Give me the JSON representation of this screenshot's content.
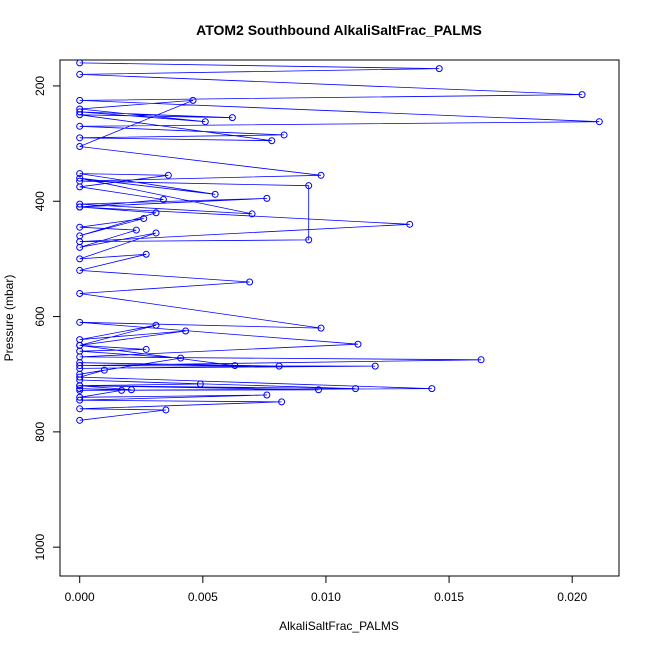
{
  "chart_data": {
    "type": "line",
    "title": "ATOM2 Southbound AlkaliSaltFrac_PALMS",
    "xlabel": "AlkaliSaltFrac_PALMS",
    "ylabel": "Pressure (mbar)",
    "xlim": [
      -0.0008,
      0.0219
    ],
    "ylim": [
      1050,
      155
    ],
    "y_reversed": true,
    "grid": false,
    "series_color": "#0000ff",
    "x_ticks": [
      0.0,
      0.005,
      0.01,
      0.015,
      0.02
    ],
    "x_tick_labels": [
      "0.000",
      "0.005",
      "0.010",
      "0.015",
      "0.020"
    ],
    "y_ticks": [
      200,
      400,
      600,
      800,
      1000
    ],
    "y_tick_labels": [
      "200",
      "400",
      "600",
      "800",
      "1000"
    ],
    "series": [
      {
        "x": [
          0.0,
          0.0146,
          0.0,
          0.0204,
          0.0,
          0.0211,
          0.0,
          0.0083,
          0.0,
          0.0078,
          0.0,
          0.0062,
          0.0,
          0.0051,
          0.0,
          0.0046,
          0.0,
          0.0098,
          0.0,
          0.0093,
          0.0093,
          0.0,
          0.0134,
          0.0,
          0.0076,
          0.0,
          0.007,
          0.0,
          0.0055,
          0.0,
          0.0036,
          0.0,
          0.0034,
          0.0,
          0.0031,
          0.0,
          0.0026,
          0.0,
          0.0023,
          0.0,
          0.0031,
          0.0,
          0.0027,
          0.0,
          0.0069,
          0.0,
          0.0098,
          0.0,
          0.0113,
          0.0,
          0.0163,
          0.0,
          0.012,
          0.0,
          0.0081,
          0.0,
          0.0063,
          0.0,
          0.0043,
          0.0,
          0.0031,
          0.0,
          0.0027,
          0.0,
          0.0041,
          0.0,
          0.001,
          0.0,
          0.0143,
          0.0,
          0.0097,
          0.0,
          0.0112,
          0.0,
          0.0049,
          0.0,
          0.0021,
          0.0,
          0.0017,
          0.0,
          0.0076,
          0.0,
          0.0082,
          0.0,
          0.0035,
          0.0
        ],
        "y": [
          160,
          170,
          180,
          215,
          225,
          262,
          270,
          285,
          290,
          295,
          250,
          255,
          245,
          262,
          240,
          225,
          305,
          355,
          365,
          373,
          467,
          470,
          440,
          410,
          395,
          405,
          422,
          360,
          388,
          352,
          355,
          375,
          397,
          410,
          420,
          460,
          430,
          445,
          450,
          480,
          455,
          500,
          492,
          520,
          540,
          560,
          620,
          610,
          648,
          670,
          675,
          685,
          686,
          690,
          686,
          680,
          685,
          650,
          625,
          640,
          615,
          650,
          657,
          660,
          672,
          700,
          693,
          705,
          725,
          728,
          727,
          720,
          725,
          710,
          717,
          720,
          727,
          725,
          728,
          740,
          736,
          745,
          748,
          760,
          762,
          780
        ]
      }
    ]
  }
}
